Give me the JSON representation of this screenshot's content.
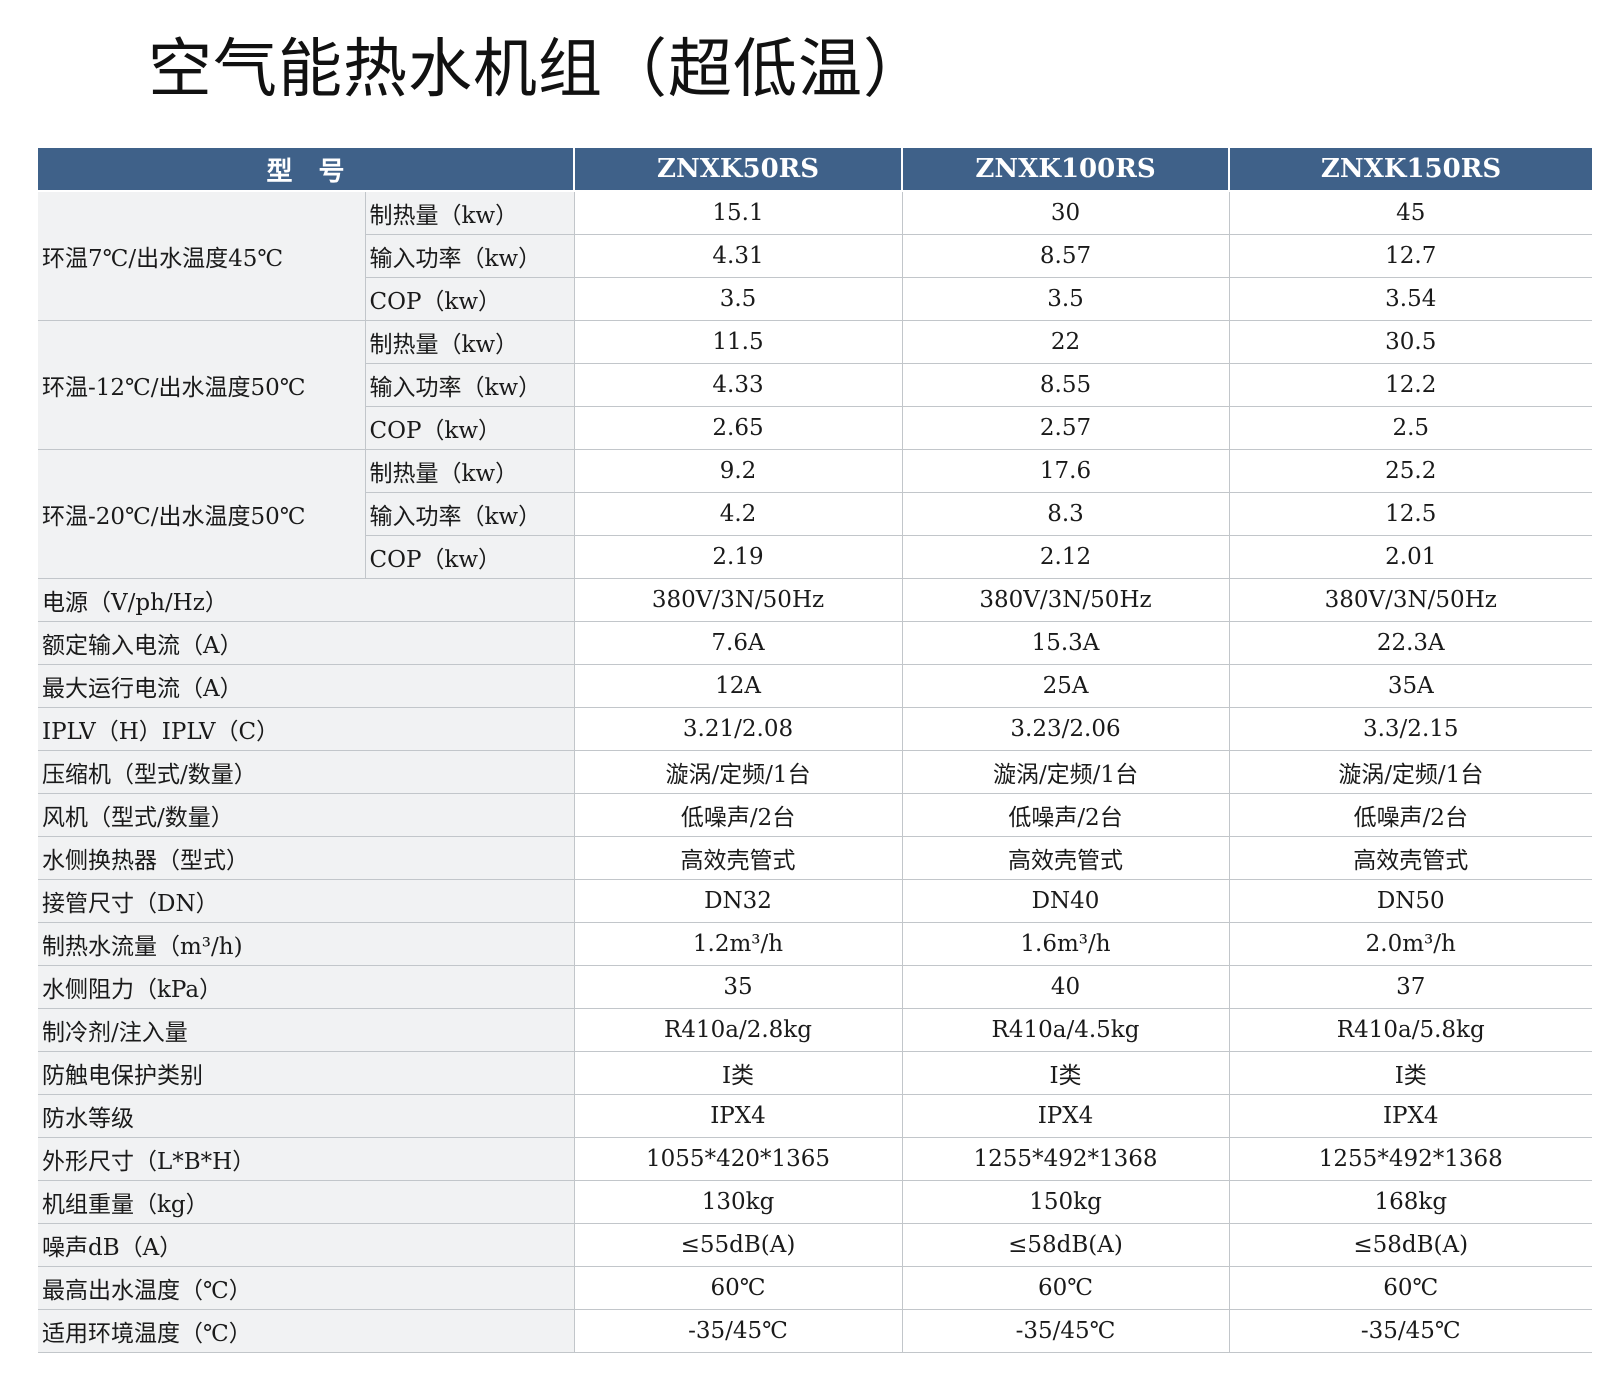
{
  "title": "空气能热水机组（超低温）",
  "header": {
    "model_label": "型　号",
    "models": [
      "ZNXK50RS",
      "ZNXK100RS",
      "ZNXK150RS"
    ]
  },
  "groups": [
    {
      "label": "环温7℃/出水温度45℃",
      "rows": [
        {
          "sub": "制热量（kw）",
          "values": [
            "15.1",
            "30",
            "45"
          ]
        },
        {
          "sub": "输入功率（kw）",
          "values": [
            "4.31",
            "8.57",
            "12.7"
          ]
        },
        {
          "sub": "COP（kw）",
          "values": [
            "3.5",
            "3.5",
            "3.54"
          ]
        }
      ]
    },
    {
      "label": "环温-12℃/出水温度50℃",
      "rows": [
        {
          "sub": "制热量（kw）",
          "values": [
            "11.5",
            "22",
            "30.5"
          ]
        },
        {
          "sub": "输入功率（kw）",
          "values": [
            "4.33",
            "8.55",
            "12.2"
          ]
        },
        {
          "sub": "COP（kw）",
          "values": [
            "2.65",
            "2.57",
            "2.5"
          ]
        }
      ]
    },
    {
      "label": "环温-20℃/出水温度50℃",
      "rows": [
        {
          "sub": "制热量（kw）",
          "values": [
            "9.2",
            "17.6",
            "25.2"
          ]
        },
        {
          "sub": "输入功率（kw）",
          "values": [
            "4.2",
            "8.3",
            "12.5"
          ]
        },
        {
          "sub": "COP（kw）",
          "values": [
            "2.19",
            "2.12",
            "2.01"
          ]
        }
      ]
    }
  ],
  "rows": [
    {
      "label": "电源（V/ph/Hz）",
      "values": [
        "380V/3N/50Hz",
        "380V/3N/50Hz",
        "380V/3N/50Hz"
      ]
    },
    {
      "label": "额定输入电流（A）",
      "values": [
        "7.6A",
        "15.3A",
        "22.3A"
      ]
    },
    {
      "label": "最大运行电流（A）",
      "values": [
        "12A",
        "25A",
        "35A"
      ]
    },
    {
      "label": "IPLV（H）IPLV（C）",
      "values": [
        "3.21/2.08",
        "3.23/2.06",
        "3.3/2.15"
      ]
    },
    {
      "label": "压缩机（型式/数量）",
      "values": [
        "漩涡/定频/1台",
        "漩涡/定频/1台",
        "漩涡/定频/1台"
      ]
    },
    {
      "label": "风机（型式/数量）",
      "values": [
        "低噪声/2台",
        "低噪声/2台",
        "低噪声/2台"
      ]
    },
    {
      "label": "水侧换热器（型式）",
      "values": [
        "高效壳管式",
        "高效壳管式",
        "高效壳管式"
      ]
    },
    {
      "label": "接管尺寸（DN）",
      "values": [
        "DN32",
        "DN40",
        "DN50"
      ]
    },
    {
      "label": "制热水流量（m³/h)",
      "values": [
        "1.2m³/h",
        "1.6m³/h",
        "2.0m³/h"
      ]
    },
    {
      "label": "水侧阻力（kPa）",
      "values": [
        "35",
        "40",
        "37"
      ]
    },
    {
      "label": "制冷剂/注入量",
      "values": [
        "R410a/2.8kg",
        "R410a/4.5kg",
        "R410a/5.8kg"
      ]
    },
    {
      "label": "防触电保护类别",
      "values": [
        "I类",
        "I类",
        "I类"
      ]
    },
    {
      "label": "防水等级",
      "values": [
        "IPX4",
        "IPX4",
        "IPX4"
      ]
    },
    {
      "label": "外形尺寸（L*B*H）",
      "values": [
        "1055*420*1365",
        "1255*492*1368",
        "1255*492*1368"
      ]
    },
    {
      "label": "机组重量（kg）",
      "values": [
        "130kg",
        "150kg",
        "168kg"
      ]
    },
    {
      "label": "噪声dB（A）",
      "values": [
        "≤55dB(A)",
        "≤58dB(A)",
        "≤58dB(A)"
      ]
    },
    {
      "label": "最高出水温度（℃）",
      "values": [
        "60℃",
        "60℃",
        "60℃"
      ]
    },
    {
      "label": "适用环境温度（℃）",
      "values": [
        "-35/45℃",
        "-35/45℃",
        "-35/45℃"
      ]
    }
  ]
}
